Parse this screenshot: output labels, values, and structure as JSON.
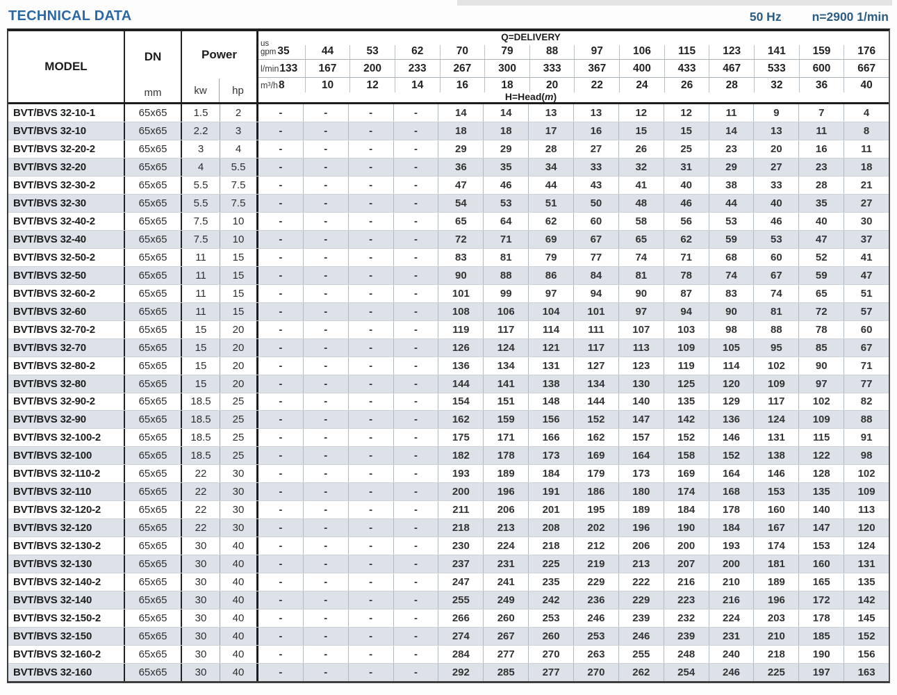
{
  "page": {
    "title": "TECHNICAL DATA",
    "frequency": "50 Hz",
    "speed": "n=2900 1/min"
  },
  "colors": {
    "title_blue": "#2a68a6",
    "info_blue": "#2a5c84",
    "row_stripe": "#dce2e7",
    "border_dark": "#1f1f1f",
    "grid_light": "#b0b9bf"
  },
  "table": {
    "model_header": "MODEL",
    "dn_header": "DN",
    "dn_unit": "mm",
    "power_header": "Power",
    "power_unit_kw": "kw",
    "power_unit_hp": "hp",
    "delivery_title": "Q=DELIVERY",
    "head_label": {
      "prefix": "H=Head(",
      "italic": "m",
      "suffix": ")"
    },
    "units": {
      "us": "us",
      "gpm": "gpm",
      "lmin": "l/min",
      "m3h": "m³/h"
    },
    "delivery": {
      "us_gpm": [
        "35",
        "44",
        "53",
        "62",
        "70",
        "79",
        "88",
        "97",
        "106",
        "115",
        "123",
        "141",
        "159",
        "176"
      ],
      "l_min": [
        "133",
        "167",
        "200",
        "233",
        "267",
        "300",
        "333",
        "367",
        "400",
        "433",
        "467",
        "533",
        "600",
        "667"
      ],
      "m3_h": [
        "8",
        "10",
        "12",
        "14",
        "16",
        "18",
        "20",
        "22",
        "24",
        "26",
        "28",
        "32",
        "36",
        "40"
      ]
    },
    "rows": [
      {
        "model": "BVT/BVS 32-10-1",
        "dn": "65x65",
        "kw": "1.5",
        "hp": "2",
        "head": [
          "-",
          "-",
          "-",
          "-",
          "14",
          "14",
          "13",
          "13",
          "12",
          "12",
          "11",
          "9",
          "7",
          "4"
        ]
      },
      {
        "model": "BVT/BVS 32-10",
        "dn": "65x65",
        "kw": "2.2",
        "hp": "3",
        "head": [
          "-",
          "-",
          "-",
          "-",
          "18",
          "18",
          "17",
          "16",
          "15",
          "15",
          "14",
          "13",
          "11",
          "8"
        ]
      },
      {
        "model": "BVT/BVS 32-20-2",
        "dn": "65x65",
        "kw": "3",
        "hp": "4",
        "head": [
          "-",
          "-",
          "-",
          "-",
          "29",
          "29",
          "28",
          "27",
          "26",
          "25",
          "23",
          "20",
          "16",
          "11"
        ]
      },
      {
        "model": "BVT/BVS 32-20",
        "dn": "65x65",
        "kw": "4",
        "hp": "5.5",
        "head": [
          "-",
          "-",
          "-",
          "-",
          "36",
          "35",
          "34",
          "33",
          "32",
          "31",
          "29",
          "27",
          "23",
          "18"
        ]
      },
      {
        "model": "BVT/BVS 32-30-2",
        "dn": "65x65",
        "kw": "5.5",
        "hp": "7.5",
        "head": [
          "-",
          "-",
          "-",
          "-",
          "47",
          "46",
          "44",
          "43",
          "41",
          "40",
          "38",
          "33",
          "28",
          "21"
        ]
      },
      {
        "model": "BVT/BVS 32-30",
        "dn": "65x65",
        "kw": "5.5",
        "hp": "7.5",
        "head": [
          "-",
          "-",
          "-",
          "-",
          "54",
          "53",
          "51",
          "50",
          "48",
          "46",
          "44",
          "40",
          "35",
          "27"
        ]
      },
      {
        "model": "BVT/BVS 32-40-2",
        "dn": "65x65",
        "kw": "7.5",
        "hp": "10",
        "head": [
          "-",
          "-",
          "-",
          "-",
          "65",
          "64",
          "62",
          "60",
          "58",
          "56",
          "53",
          "46",
          "40",
          "30"
        ]
      },
      {
        "model": "BVT/BVS 32-40",
        "dn": "65x65",
        "kw": "7.5",
        "hp": "10",
        "head": [
          "-",
          "-",
          "-",
          "-",
          "72",
          "71",
          "69",
          "67",
          "65",
          "62",
          "59",
          "53",
          "47",
          "37"
        ]
      },
      {
        "model": "BVT/BVS 32-50-2",
        "dn": "65x65",
        "kw": "11",
        "hp": "15",
        "head": [
          "-",
          "-",
          "-",
          "-",
          "83",
          "81",
          "79",
          "77",
          "74",
          "71",
          "68",
          "60",
          "52",
          "41"
        ]
      },
      {
        "model": "BVT/BVS 32-50",
        "dn": "65x65",
        "kw": "11",
        "hp": "15",
        "head": [
          "-",
          "-",
          "-",
          "-",
          "90",
          "88",
          "86",
          "84",
          "81",
          "78",
          "74",
          "67",
          "59",
          "47"
        ]
      },
      {
        "model": "BVT/BVS 32-60-2",
        "dn": "65x65",
        "kw": "11",
        "hp": "15",
        "head": [
          "-",
          "-",
          "-",
          "-",
          "101",
          "99",
          "97",
          "94",
          "90",
          "87",
          "83",
          "74",
          "65",
          "51"
        ]
      },
      {
        "model": "BVT/BVS 32-60",
        "dn": "65x65",
        "kw": "11",
        "hp": "15",
        "head": [
          "-",
          "-",
          "-",
          "-",
          "108",
          "106",
          "104",
          "101",
          "97",
          "94",
          "90",
          "81",
          "72",
          "57"
        ]
      },
      {
        "model": "BVT/BVS 32-70-2",
        "dn": "65x65",
        "kw": "15",
        "hp": "20",
        "head": [
          "-",
          "-",
          "-",
          "-",
          "119",
          "117",
          "114",
          "111",
          "107",
          "103",
          "98",
          "88",
          "78",
          "60"
        ]
      },
      {
        "model": "BVT/BVS 32-70",
        "dn": "65x65",
        "kw": "15",
        "hp": "20",
        "head": [
          "-",
          "-",
          "-",
          "-",
          "126",
          "124",
          "121",
          "117",
          "113",
          "109",
          "105",
          "95",
          "85",
          "67"
        ]
      },
      {
        "model": "BVT/BVS 32-80-2",
        "dn": "65x65",
        "kw": "15",
        "hp": "20",
        "head": [
          "-",
          "-",
          "-",
          "-",
          "136",
          "134",
          "131",
          "127",
          "123",
          "119",
          "114",
          "102",
          "90",
          "71"
        ]
      },
      {
        "model": "BVT/BVS 32-80",
        "dn": "65x65",
        "kw": "15",
        "hp": "20",
        "head": [
          "-",
          "-",
          "-",
          "-",
          "144",
          "141",
          "138",
          "134",
          "130",
          "125",
          "120",
          "109",
          "97",
          "77"
        ]
      },
      {
        "model": "BVT/BVS 32-90-2",
        "dn": "65x65",
        "kw": "18.5",
        "hp": "25",
        "head": [
          "-",
          "-",
          "-",
          "-",
          "154",
          "151",
          "148",
          "144",
          "140",
          "135",
          "129",
          "117",
          "102",
          "82"
        ]
      },
      {
        "model": "BVT/BVS 32-90",
        "dn": "65x65",
        "kw": "18.5",
        "hp": "25",
        "head": [
          "-",
          "-",
          "-",
          "-",
          "162",
          "159",
          "156",
          "152",
          "147",
          "142",
          "136",
          "124",
          "109",
          "88"
        ]
      },
      {
        "model": "BVT/BVS 32-100-2",
        "dn": "65x65",
        "kw": "18.5",
        "hp": "25",
        "head": [
          "-",
          "-",
          "-",
          "-",
          "175",
          "171",
          "166",
          "162",
          "157",
          "152",
          "146",
          "131",
          "115",
          "91"
        ]
      },
      {
        "model": "BVT/BVS 32-100",
        "dn": "65x65",
        "kw": "18.5",
        "hp": "25",
        "head": [
          "-",
          "-",
          "-",
          "-",
          "182",
          "178",
          "173",
          "169",
          "164",
          "158",
          "152",
          "138",
          "122",
          "98"
        ]
      },
      {
        "model": "BVT/BVS 32-110-2",
        "dn": "65x65",
        "kw": "22",
        "hp": "30",
        "head": [
          "-",
          "-",
          "-",
          "-",
          "193",
          "189",
          "184",
          "179",
          "173",
          "169",
          "164",
          "146",
          "128",
          "102"
        ]
      },
      {
        "model": "BVT/BVS 32-110",
        "dn": "65x65",
        "kw": "22",
        "hp": "30",
        "head": [
          "-",
          "-",
          "-",
          "-",
          "200",
          "196",
          "191",
          "186",
          "180",
          "174",
          "168",
          "153",
          "135",
          "109"
        ]
      },
      {
        "model": "BVT/BVS 32-120-2",
        "dn": "65x65",
        "kw": "22",
        "hp": "30",
        "head": [
          "-",
          "-",
          "-",
          "-",
          "211",
          "206",
          "201",
          "195",
          "189",
          "184",
          "178",
          "160",
          "140",
          "113"
        ]
      },
      {
        "model": "BVT/BVS 32-120",
        "dn": "65x65",
        "kw": "22",
        "hp": "30",
        "head": [
          "-",
          "-",
          "-",
          "-",
          "218",
          "213",
          "208",
          "202",
          "196",
          "190",
          "184",
          "167",
          "147",
          "120"
        ]
      },
      {
        "model": "BVT/BVS 32-130-2",
        "dn": "65x65",
        "kw": "30",
        "hp": "40",
        "head": [
          "-",
          "-",
          "-",
          "-",
          "230",
          "224",
          "218",
          "212",
          "206",
          "200",
          "193",
          "174",
          "153",
          "124"
        ]
      },
      {
        "model": "BVT/BVS 32-130",
        "dn": "65x65",
        "kw": "30",
        "hp": "40",
        "head": [
          "-",
          "-",
          "-",
          "-",
          "237",
          "231",
          "225",
          "219",
          "213",
          "207",
          "200",
          "181",
          "160",
          "131"
        ]
      },
      {
        "model": "BVT/BVS 32-140-2",
        "dn": "65x65",
        "kw": "30",
        "hp": "40",
        "head": [
          "-",
          "-",
          "-",
          "-",
          "247",
          "241",
          "235",
          "229",
          "222",
          "216",
          "210",
          "189",
          "165",
          "135"
        ]
      },
      {
        "model": "BVT/BVS 32-140",
        "dn": "65x65",
        "kw": "30",
        "hp": "40",
        "head": [
          "-",
          "-",
          "-",
          "-",
          "255",
          "249",
          "242",
          "236",
          "229",
          "223",
          "216",
          "196",
          "172",
          "142"
        ]
      },
      {
        "model": "BVT/BVS 32-150-2",
        "dn": "65x65",
        "kw": "30",
        "hp": "40",
        "head": [
          "-",
          "-",
          "-",
          "-",
          "266",
          "260",
          "253",
          "246",
          "239",
          "232",
          "224",
          "203",
          "178",
          "145"
        ]
      },
      {
        "model": "BVT/BVS 32-150",
        "dn": "65x65",
        "kw": "30",
        "hp": "40",
        "head": [
          "-",
          "-",
          "-",
          "-",
          "274",
          "267",
          "260",
          "253",
          "246",
          "239",
          "231",
          "210",
          "185",
          "152"
        ]
      },
      {
        "model": "BVT/BVS 32-160-2",
        "dn": "65x65",
        "kw": "30",
        "hp": "40",
        "head": [
          "-",
          "-",
          "-",
          "-",
          "284",
          "277",
          "270",
          "263",
          "255",
          "248",
          "240",
          "218",
          "190",
          "156"
        ]
      },
      {
        "model": "BVT/BVS 32-160",
        "dn": "65x65",
        "kw": "30",
        "hp": "40",
        "head": [
          "-",
          "-",
          "-",
          "-",
          "292",
          "285",
          "277",
          "270",
          "262",
          "254",
          "246",
          "225",
          "197",
          "163"
        ]
      }
    ]
  }
}
